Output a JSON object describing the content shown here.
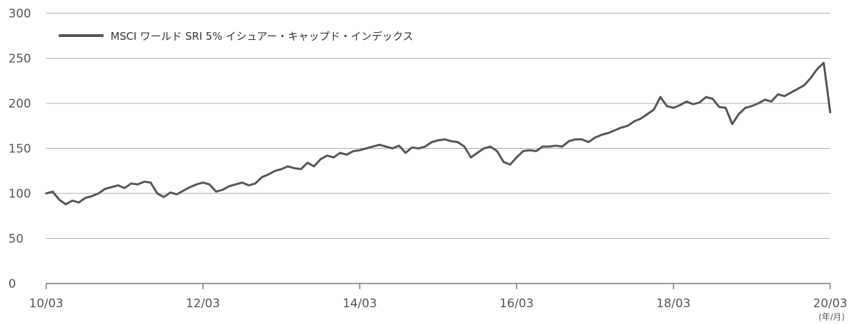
{
  "chart_data": {
    "type": "line",
    "title": "",
    "xlabel": "",
    "ylabel": "",
    "x_unit": "(年/月)",
    "ylim": [
      0,
      300
    ],
    "yticks": [
      0,
      50,
      100,
      150,
      200,
      250,
      300
    ],
    "xticks": [
      "10/03",
      "12/03",
      "14/03",
      "16/03",
      "18/03",
      "20/03"
    ],
    "grid": "horizontal",
    "legend_position": "top-left",
    "series": [
      {
        "name": "MSCI ワールド SRI 5% イシュアー・キャップド・インデックス",
        "color": "#5a5350",
        "x": [
          "2010-03",
          "2010-04",
          "2010-05",
          "2010-06",
          "2010-07",
          "2010-08",
          "2010-09",
          "2010-10",
          "2010-11",
          "2010-12",
          "2011-01",
          "2011-02",
          "2011-03",
          "2011-04",
          "2011-05",
          "2011-06",
          "2011-07",
          "2011-08",
          "2011-09",
          "2011-10",
          "2011-11",
          "2011-12",
          "2012-01",
          "2012-02",
          "2012-03",
          "2012-04",
          "2012-05",
          "2012-06",
          "2012-07",
          "2012-08",
          "2012-09",
          "2012-10",
          "2012-11",
          "2012-12",
          "2013-01",
          "2013-02",
          "2013-03",
          "2013-04",
          "2013-05",
          "2013-06",
          "2013-07",
          "2013-08",
          "2013-09",
          "2013-10",
          "2013-11",
          "2013-12",
          "2014-01",
          "2014-02",
          "2014-03",
          "2014-04",
          "2014-05",
          "2014-06",
          "2014-07",
          "2014-08",
          "2014-09",
          "2014-10",
          "2014-11",
          "2014-12",
          "2015-01",
          "2015-02",
          "2015-03",
          "2015-04",
          "2015-05",
          "2015-06",
          "2015-07",
          "2015-08",
          "2015-09",
          "2015-10",
          "2015-11",
          "2015-12",
          "2016-01",
          "2016-02",
          "2016-03",
          "2016-04",
          "2016-05",
          "2016-06",
          "2016-07",
          "2016-08",
          "2016-09",
          "2016-10",
          "2016-11",
          "2016-12",
          "2017-01",
          "2017-02",
          "2017-03",
          "2017-04",
          "2017-05",
          "2017-06",
          "2017-07",
          "2017-08",
          "2017-09",
          "2017-10",
          "2017-11",
          "2017-12",
          "2018-01",
          "2018-02",
          "2018-03",
          "2018-04",
          "2018-05",
          "2018-06",
          "2018-07",
          "2018-08",
          "2018-09",
          "2018-10",
          "2018-11",
          "2018-12",
          "2019-01",
          "2019-02",
          "2019-03",
          "2019-04",
          "2019-05",
          "2019-06",
          "2019-07",
          "2019-08",
          "2019-09",
          "2019-10",
          "2019-11",
          "2019-12",
          "2020-01",
          "2020-02",
          "2020-03"
        ],
        "values": [
          100,
          102,
          93,
          88,
          92,
          90,
          95,
          97,
          100,
          105,
          107,
          109,
          106,
          111,
          110,
          113,
          112,
          100,
          96,
          101,
          99,
          103,
          107,
          110,
          112,
          110,
          102,
          104,
          108,
          110,
          112,
          109,
          111,
          118,
          121,
          125,
          127,
          130,
          128,
          127,
          134,
          130,
          138,
          142,
          140,
          145,
          143,
          147,
          148,
          150,
          152,
          154,
          152,
          150,
          153,
          145,
          151,
          150,
          152,
          157,
          159,
          160,
          158,
          157,
          152,
          140,
          145,
          150,
          152,
          147,
          135,
          132,
          140,
          147,
          148,
          147,
          152,
          152,
          153,
          152,
          158,
          160,
          160,
          157,
          162,
          165,
          167,
          170,
          173,
          175,
          180,
          183,
          188,
          193,
          207,
          197,
          195,
          198,
          202,
          199,
          201,
          207,
          205,
          196,
          195,
          177,
          188,
          195,
          197,
          200,
          204,
          202,
          210,
          208,
          212,
          216,
          220,
          228,
          238,
          245,
          190
        ]
      }
    ]
  }
}
